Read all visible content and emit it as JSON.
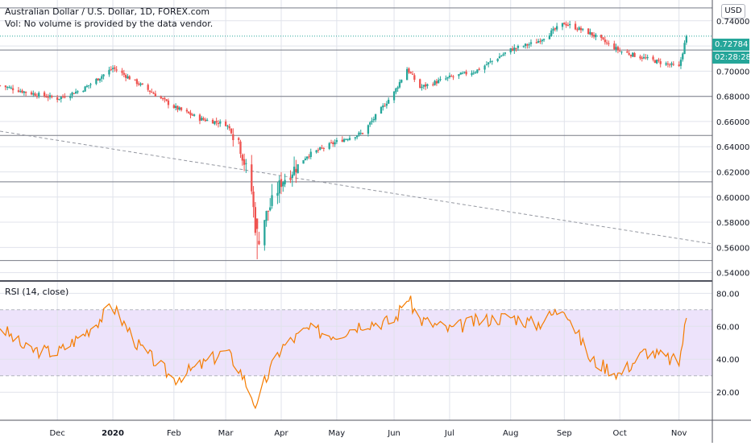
{
  "header": {
    "symbol_title": "Australian Dollar / U.S. Dollar, 1D, FOREX.com",
    "volume_note": "Vol: No volume is provided by the data vendor."
  },
  "currency_button": "USD",
  "price_badges": {
    "last_price": "0.72784",
    "countdown": "02:28:28"
  },
  "rsi_title": "RSI (14, close)",
  "colors": {
    "up": "#26a69a",
    "down": "#ef5350",
    "rsi_line": "#f57c00",
    "rsi_band": "#ede3fb",
    "grid": "#e0e3eb",
    "level_line": "#787b86",
    "trendline": "#9598a1"
  },
  "chart_data": [
    {
      "type": "candlestick",
      "title": "Australian Dollar / U.S. Dollar, 1D, FOREX.com",
      "y_ticks": [
        "0.54000",
        "0.56000",
        "0.58000",
        "0.60000",
        "0.62000",
        "0.64000",
        "0.66000",
        "0.68000",
        "0.70000",
        "0.72000",
        "0.74000"
      ],
      "ylim": [
        0.534,
        0.7565
      ],
      "x_ticks": [
        "Dec",
        "2020",
        "Feb",
        "Mar",
        "Apr",
        "May",
        "Jun",
        "Jul",
        "Aug",
        "Sep",
        "Oct",
        "Nov"
      ],
      "x_tick_dates": [
        "2019-12-02",
        "2020-01-01",
        "2020-02-03",
        "2020-03-02",
        "2020-04-01",
        "2020-05-01",
        "2020-06-01",
        "2020-07-01",
        "2020-08-03",
        "2020-09-01",
        "2020-10-01",
        "2020-11-02"
      ],
      "grid": true,
      "horizontal_levels": [
        0.7502,
        0.7168,
        0.6799,
        0.6489,
        0.6121,
        0.5496
      ],
      "trendline": {
        "from": [
          "2019-11-01",
          0.6523
        ],
        "to": [
          "2020-11-20",
          0.5628
        ],
        "style": "dashed"
      },
      "close_series": {
        "dates": [
          "2019-11-01",
          "2019-11-15",
          "2019-12-02",
          "2019-12-16",
          "2020-01-01",
          "2020-01-15",
          "2020-02-03",
          "2020-02-17",
          "2020-03-02",
          "2020-03-09",
          "2020-03-16",
          "2020-03-19",
          "2020-03-23",
          "2020-04-01",
          "2020-04-15",
          "2020-05-01",
          "2020-05-15",
          "2020-06-01",
          "2020-06-08",
          "2020-06-15",
          "2020-07-01",
          "2020-07-15",
          "2020-08-03",
          "2020-08-17",
          "2020-09-01",
          "2020-09-15",
          "2020-10-01",
          "2020-10-15",
          "2020-11-02",
          "2020-11-06"
        ],
        "values": [
          0.6886,
          0.6833,
          0.6782,
          0.6857,
          0.7025,
          0.69,
          0.6715,
          0.6622,
          0.658,
          0.645,
          0.605,
          0.562,
          0.583,
          0.612,
          0.633,
          0.644,
          0.651,
          0.683,
          0.702,
          0.687,
          0.695,
          0.7,
          0.717,
          0.723,
          0.738,
          0.73,
          0.716,
          0.71,
          0.703,
          0.7278
        ]
      },
      "last_price": 0.72784
    },
    {
      "type": "line",
      "title": "RSI (14, close)",
      "y_ticks": [
        "20.00",
        "40.00",
        "60.00",
        "80.00"
      ],
      "ylim": [
        3,
        87
      ],
      "band": [
        30,
        70
      ],
      "dates": [
        "2019-11-01",
        "2019-11-15",
        "2019-12-02",
        "2019-12-16",
        "2020-01-01",
        "2020-01-15",
        "2020-02-03",
        "2020-02-17",
        "2020-03-02",
        "2020-03-09",
        "2020-03-16",
        "2020-03-19",
        "2020-03-23",
        "2020-04-01",
        "2020-04-15",
        "2020-05-01",
        "2020-05-15",
        "2020-06-01",
        "2020-06-08",
        "2020-06-15",
        "2020-07-01",
        "2020-07-15",
        "2020-08-03",
        "2020-08-17",
        "2020-09-01",
        "2020-09-15",
        "2020-10-01",
        "2020-10-15",
        "2020-11-02",
        "2020-11-06"
      ],
      "values": [
        60,
        46,
        44,
        55,
        72,
        48,
        28,
        36,
        45,
        35,
        18,
        10,
        26,
        47,
        58,
        55,
        62,
        63,
        78,
        64,
        58,
        63,
        66,
        61,
        72,
        40,
        31,
        45,
        38,
        65
      ]
    }
  ]
}
